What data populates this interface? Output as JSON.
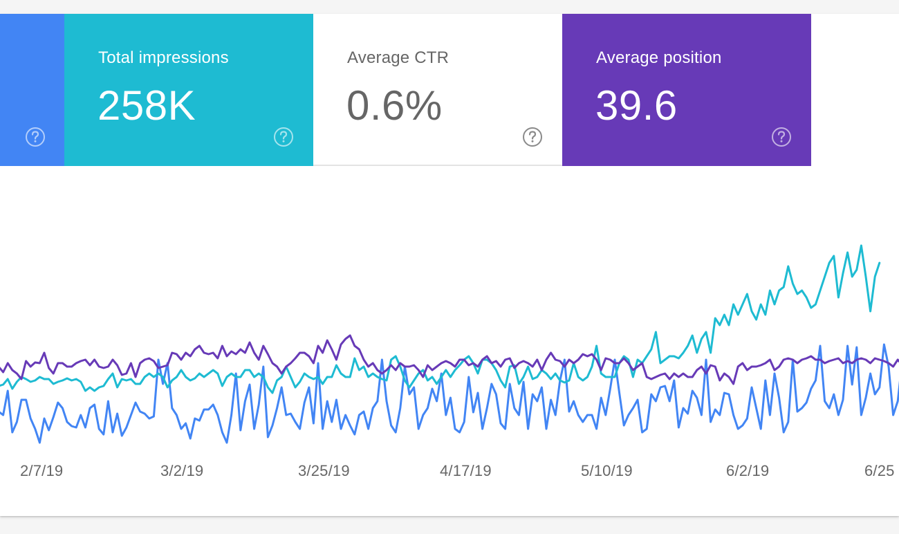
{
  "cards": {
    "clicks": {
      "label": "",
      "value": "",
      "color": "#4285f4"
    },
    "impressions": {
      "label": "Total impressions",
      "value": "258K",
      "color": "#1ebbd2"
    },
    "ctr": {
      "label": "Average CTR",
      "value": "0.6%",
      "color": "#ffffff"
    },
    "position": {
      "label": "Average position",
      "value": "39.6",
      "color": "#673ab7"
    }
  },
  "chart_data": {
    "type": "line",
    "title": "",
    "xlabel": "",
    "ylabel": "",
    "x_tick_labels": [
      "2/7/19",
      "3/2/19",
      "3/25/19",
      "4/17/19",
      "5/10/19",
      "6/2/19",
      "6/25"
    ],
    "grid": false,
    "legend": "none",
    "series": [
      {
        "color": "#4285f4",
        "values": [
          595,
          600,
          565,
          625,
          610,
          578,
          578,
          605,
          620,
          640,
          605,
          622,
          603,
          582,
          590,
          610,
          616,
          618,
          600,
          618,
          590,
          585,
          620,
          628,
          580,
          625,
          598,
          630,
          618,
          600,
          582,
          595,
          598,
          605,
          602,
          520,
          555,
          525,
          590,
          600,
          620,
          612,
          634,
          605,
          608,
          592,
          592,
          585,
          600,
          625,
          640,
          600,
          540,
          622,
          580,
          556,
          620,
          585,
          530,
          632,
          615,
          590,
          560,
          600,
          598,
          610,
          620,
          582,
          560,
          612,
          525,
          620,
          580,
          610,
          578,
          620,
          600,
          615,
          628,
          600,
          595,
          620,
          590,
          580,
          520,
          580,
          615,
          625,
          590,
          530,
          570,
          560,
          620,
          600,
          590,
          562,
          580,
          540,
          600,
          575,
          620,
          625,
          610,
          545,
          596,
          568,
          620,
          590,
          555,
          570,
          612,
          620,
          555,
          590,
          600,
          552,
          620,
          570,
          580,
          560,
          620,
          578,
          600,
          550,
          520,
          595,
          580,
          600,
          610,
          600,
          600,
          620,
          575,
          600,
          562,
          520,
          568,
          615,
          600,
          590,
          578,
          625,
          620,
          570,
          580,
          560,
          558,
          580,
          550,
          618,
          590,
          598,
          565,
          575,
          600,
          520,
          610,
          592,
          600,
          568,
          570,
          600,
          620,
          615,
          605,
          560,
          590,
          620,
          550,
          600,
          540,
          575,
          625,
          610,
          520,
          595,
          590,
          582,
          562,
          550,
          500,
          580,
          590,
          570,
          600,
          578,
          500,
          556,
          502,
          600,
          575,
          540,
          570,
          560,
          498,
          530,
          600,
          580,
          520,
          575,
          478,
          522
        ]
      },
      {
        "color": "#1ebbd2",
        "values": [
          558,
          556,
          548,
          562,
          552,
          545,
          548,
          552,
          550,
          545,
          548,
          548,
          555,
          552,
          550,
          547,
          550,
          548,
          552,
          565,
          560,
          565,
          560,
          558,
          548,
          540,
          560,
          548,
          550,
          548,
          555,
          555,
          545,
          540,
          545,
          540,
          545,
          560,
          550,
          545,
          535,
          545,
          550,
          547,
          540,
          545,
          540,
          535,
          540,
          558,
          545,
          540,
          545,
          545,
          535,
          535,
          545,
          540,
          545,
          560,
          568,
          550,
          545,
          530,
          545,
          560,
          552,
          540,
          545,
          548,
          545,
          555,
          545,
          545,
          528,
          540,
          545,
          545,
          518,
          535,
          530,
          545,
          540,
          545,
          548,
          550,
          520,
          515,
          530,
          550,
          560,
          550,
          540,
          535,
          550,
          545,
          555,
          545,
          535,
          545,
          535,
          528,
          520,
          515,
          525,
          540,
          520,
          520,
          525,
          535,
          550,
          560,
          530,
          528,
          555,
          545,
          530,
          548,
          545,
          535,
          540,
          548,
          540,
          550,
          553,
          550,
          525,
          545,
          550,
          545,
          530,
          500,
          540,
          545,
          545,
          545,
          525,
          515,
          520,
          545,
          520,
          525,
          515,
          505,
          480,
          525,
          520,
          515,
          515,
          518,
          510,
          500,
          485,
          510,
          490,
          480,
          510,
          460,
          470,
          455,
          470,
          440,
          455,
          440,
          425,
          450,
          462,
          440,
          455,
          420,
          440,
          420,
          415,
          385,
          410,
          425,
          420,
          430,
          445,
          440,
          420,
          400,
          380,
          370,
          430,
          395,
          365,
          400,
          390,
          355,
          400,
          450,
          400,
          380
        ]
      },
      {
        "color": "#673ab7",
        "values": [
          530,
          538,
          525,
          535,
          540,
          548,
          522,
          530,
          524,
          525,
          510,
          532,
          540,
          525,
          525,
          530,
          530,
          525,
          522,
          520,
          528,
          520,
          530,
          532,
          530,
          520,
          528,
          542,
          540,
          525,
          545,
          525,
          520,
          518,
          522,
          532,
          530,
          528,
          510,
          512,
          520,
          510,
          515,
          505,
          500,
          510,
          512,
          510,
          518,
          500,
          515,
          508,
          512,
          505,
          510,
          495,
          510,
          520,
          500,
          512,
          525,
          530,
          540,
          530,
          525,
          518,
          510,
          510,
          515,
          525,
          500,
          510,
          492,
          505,
          520,
          498,
          490,
          485,
          500,
          505,
          520,
          530,
          525,
          535,
          540,
          535,
          528,
          535,
          525,
          530,
          530,
          528,
          535,
          545,
          528,
          535,
          530,
          525,
          522,
          525,
          530,
          520,
          520,
          528,
          525,
          530,
          520,
          515,
          525,
          522,
          530,
          520,
          518,
          532,
          525,
          522,
          525,
          530,
          520,
          535,
          520,
          510,
          520,
          522,
          530,
          520,
          525,
          520,
          512,
          515,
          512,
          520,
          535,
          518,
          520,
          525,
          525,
          518,
          525,
          535,
          530,
          525,
          545,
          548,
          545,
          542,
          540,
          548,
          540,
          545,
          540,
          545,
          545,
          535,
          530,
          540,
          528,
          530,
          550,
          540,
          545,
          555,
          530,
          525,
          535,
          530,
          530,
          528,
          525,
          520,
          535,
          530,
          520,
          518,
          520,
          525,
          520,
          518,
          515,
          520,
          520,
          525,
          522,
          520,
          518,
          525,
          522,
          525,
          520,
          518,
          520,
          525,
          518,
          520,
          522,
          525,
          530,
          520,
          528
        ]
      }
    ]
  }
}
